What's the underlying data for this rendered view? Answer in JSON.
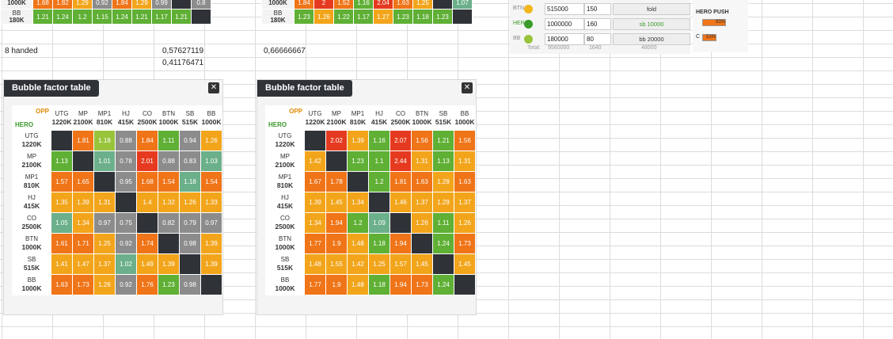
{
  "top_left_table": {
    "rows": [
      {
        "label": [
          "",
          "1000K"
        ],
        "values": [
          "1.68",
          "1.82",
          "1.29",
          "0.92",
          "1.84",
          "1.29",
          "0.99",
          "",
          "0.8"
        ],
        "colors": [
          "orange",
          "orange",
          "amber",
          "gray",
          "orange",
          "amber",
          "gray",
          "black",
          "gray"
        ]
      },
      {
        "label": [
          "BB",
          "180K"
        ],
        "values": [
          "1.21",
          "1.24",
          "1.2",
          "1.15",
          "1.24",
          "1.21",
          "1.17",
          "1.21",
          ""
        ],
        "colors": [
          "green",
          "green",
          "green",
          "green",
          "green",
          "green",
          "green",
          "green",
          "black"
        ]
      }
    ]
  },
  "top_mid_table": {
    "rows": [
      {
        "label": [
          "",
          "1000K"
        ],
        "values": [
          "1.84",
          "2",
          "1.52",
          "1.16",
          "2.04",
          "1.63",
          "1.25",
          "",
          "1.07"
        ],
        "colors": [
          "orange",
          "red",
          "orange",
          "green",
          "red",
          "orange",
          "amber",
          "black",
          "teal"
        ]
      },
      {
        "label": [
          "BB",
          "180K"
        ],
        "values": [
          "1.23",
          "1.26",
          "1.22",
          "1.17",
          "1.27",
          "1.23",
          "1.18",
          "1.23",
          ""
        ],
        "colors": [
          "green",
          "amber",
          "green",
          "green",
          "amber",
          "green",
          "green",
          "green",
          "black"
        ]
      }
    ]
  },
  "sheet_cells": {
    "label_8handed": "8 handed",
    "val_a1": "0,57627119",
    "val_a2": "0,41176471",
    "val_b1": "0,66666667"
  },
  "controls": {
    "rows": [
      {
        "pos": "BTN",
        "stack": "515000",
        "bet": "150",
        "action": "fold",
        "dot": "#f2b51b"
      },
      {
        "pos": "HERO",
        "stack": "1000000",
        "bet": "160",
        "action": "sb 10000",
        "dot": "#3a9a2a"
      },
      {
        "pos": "BB",
        "stack": "180000",
        "bet": "80",
        "action": "bb 20000",
        "dot": "#98c43c"
      }
    ],
    "totals_label": "Total:",
    "total_stack": "9560000",
    "total_bet": "1640",
    "total_pot": "48000"
  },
  "hero_push": {
    "title": "HERO PUSH",
    "bar1_label": "93%",
    "bar2_prefix": "C",
    "bar2_label": "53%",
    "bar1_fill": 0.93,
    "bar2_fill": 0.53
  },
  "tables": [
    {
      "title": "Bubble factor table",
      "opp_label": "OPP",
      "hero_label": "HERO",
      "players": [
        {
          "pos": "UTG",
          "stack": "1220K"
        },
        {
          "pos": "MP",
          "stack": "2100K"
        },
        {
          "pos": "MP1",
          "stack": "810K"
        },
        {
          "pos": "HJ",
          "stack": "415K"
        },
        {
          "pos": "CO",
          "stack": "2500K"
        },
        {
          "pos": "BTN",
          "stack": "1000K"
        },
        {
          "pos": "SB",
          "stack": "515K"
        },
        {
          "pos": "BB",
          "stack": "1000K"
        }
      ],
      "cells": [
        [
          [
            "",
            "black"
          ],
          [
            "1.81",
            "orange"
          ],
          [
            "1.18",
            "lime"
          ],
          [
            "0.88",
            "gray"
          ],
          [
            "1.84",
            "orange"
          ],
          [
            "1.11",
            "green"
          ],
          [
            "0.94",
            "gray"
          ],
          [
            "1.26",
            "amber"
          ]
        ],
        [
          [
            "1.13",
            "green"
          ],
          [
            "",
            "black"
          ],
          [
            "1.01",
            "teal"
          ],
          [
            "0.78",
            "gray"
          ],
          [
            "2.01",
            "red"
          ],
          [
            "0.88",
            "gray"
          ],
          [
            "0.83",
            "gray"
          ],
          [
            "1.03",
            "teal"
          ]
        ],
        [
          [
            "1.57",
            "orange"
          ],
          [
            "1.65",
            "orange"
          ],
          [
            "",
            "black"
          ],
          [
            "0.95",
            "gray"
          ],
          [
            "1.68",
            "orange"
          ],
          [
            "1.54",
            "orange"
          ],
          [
            "1.18",
            "teal"
          ],
          [
            "1.54",
            "orange"
          ]
        ],
        [
          [
            "1.35",
            "amber"
          ],
          [
            "1.39",
            "amber"
          ],
          [
            "1.31",
            "amber"
          ],
          [
            "",
            "black"
          ],
          [
            "1.4",
            "amber"
          ],
          [
            "1.32",
            "amber"
          ],
          [
            "1.26",
            "amber"
          ],
          [
            "1.33",
            "amber"
          ]
        ],
        [
          [
            "1.05",
            "teal"
          ],
          [
            "1.34",
            "amber"
          ],
          [
            "0.97",
            "gray"
          ],
          [
            "0.75",
            "gray"
          ],
          [
            "",
            "black"
          ],
          [
            "0.82",
            "gray"
          ],
          [
            "0.79",
            "gray"
          ],
          [
            "0.97",
            "gray"
          ]
        ],
        [
          [
            "1.61",
            "orange"
          ],
          [
            "1.71",
            "orange"
          ],
          [
            "1.25",
            "amber"
          ],
          [
            "0.92",
            "gray"
          ],
          [
            "1.74",
            "orange"
          ],
          [
            "",
            "black"
          ],
          [
            "0.98",
            "gray"
          ],
          [
            "1.39",
            "amber"
          ]
        ],
        [
          [
            "1.41",
            "amber"
          ],
          [
            "1.47",
            "amber"
          ],
          [
            "1.37",
            "amber"
          ],
          [
            "1.02",
            "teal"
          ],
          [
            "1.49",
            "amber"
          ],
          [
            "1.39",
            "amber"
          ],
          [
            "",
            "black"
          ],
          [
            "1.39",
            "amber"
          ]
        ],
        [
          [
            "1.63",
            "orange"
          ],
          [
            "1.73",
            "orange"
          ],
          [
            "1.26",
            "amber"
          ],
          [
            "0.92",
            "gray"
          ],
          [
            "1.76",
            "orange"
          ],
          [
            "1.23",
            "green"
          ],
          [
            "0.98",
            "gray"
          ],
          [
            "",
            "black"
          ]
        ]
      ]
    },
    {
      "title": "Bubble factor table",
      "opp_label": "OPP",
      "hero_label": "HERO",
      "players": [
        {
          "pos": "UTG",
          "stack": "1220K"
        },
        {
          "pos": "MP",
          "stack": "2100K"
        },
        {
          "pos": "MP1",
          "stack": "810K"
        },
        {
          "pos": "HJ",
          "stack": "415K"
        },
        {
          "pos": "CO",
          "stack": "2500K"
        },
        {
          "pos": "BTN",
          "stack": "1000K"
        },
        {
          "pos": "SB",
          "stack": "515K"
        },
        {
          "pos": "BB",
          "stack": "1000K"
        }
      ],
      "cells": [
        [
          [
            "",
            "black"
          ],
          [
            "2.02",
            "red"
          ],
          [
            "1.39",
            "amber"
          ],
          [
            "1.16",
            "green"
          ],
          [
            "2.07",
            "red"
          ],
          [
            "1.56",
            "orange"
          ],
          [
            "1.21",
            "green"
          ],
          [
            "1.56",
            "orange"
          ]
        ],
        [
          [
            "1.42",
            "amber"
          ],
          [
            "",
            "black"
          ],
          [
            "1.23",
            "green"
          ],
          [
            "1.1",
            "green"
          ],
          [
            "2.44",
            "red"
          ],
          [
            "1.31",
            "amber"
          ],
          [
            "1.13",
            "green"
          ],
          [
            "1.31",
            "amber"
          ]
        ],
        [
          [
            "1.67",
            "orange"
          ],
          [
            "1.78",
            "orange"
          ],
          [
            "",
            "black"
          ],
          [
            "1.2",
            "green"
          ],
          [
            "1.81",
            "orange"
          ],
          [
            "1.63",
            "orange"
          ],
          [
            "1.28",
            "amber"
          ],
          [
            "1.63",
            "orange"
          ]
        ],
        [
          [
            "1.39",
            "amber"
          ],
          [
            "1.45",
            "amber"
          ],
          [
            "1.34",
            "amber"
          ],
          [
            "",
            "black"
          ],
          [
            "1.46",
            "amber"
          ],
          [
            "1.37",
            "amber"
          ],
          [
            "1.29",
            "amber"
          ],
          [
            "1.37",
            "amber"
          ]
        ],
        [
          [
            "1.34",
            "amber"
          ],
          [
            "1.94",
            "orange"
          ],
          [
            "1.2",
            "green"
          ],
          [
            "1.09",
            "teal"
          ],
          [
            "",
            "black"
          ],
          [
            "1.26",
            "amber"
          ],
          [
            "1.11",
            "green"
          ],
          [
            "1.26",
            "amber"
          ]
        ],
        [
          [
            "1.77",
            "orange"
          ],
          [
            "1.9",
            "orange"
          ],
          [
            "1.48",
            "amber"
          ],
          [
            "1.18",
            "green"
          ],
          [
            "1.94",
            "orange"
          ],
          [
            "",
            "black"
          ],
          [
            "1.24",
            "green"
          ],
          [
            "1.73",
            "orange"
          ]
        ],
        [
          [
            "1.48",
            "amber"
          ],
          [
            "1.55",
            "amber"
          ],
          [
            "1.42",
            "amber"
          ],
          [
            "1.25",
            "amber"
          ],
          [
            "1.57",
            "amber"
          ],
          [
            "1.45",
            "amber"
          ],
          [
            "",
            "black"
          ],
          [
            "1.45",
            "amber"
          ]
        ],
        [
          [
            "1.77",
            "orange"
          ],
          [
            "1.9",
            "orange"
          ],
          [
            "1.48",
            "amber"
          ],
          [
            "1.18",
            "green"
          ],
          [
            "1.94",
            "orange"
          ],
          [
            "1.73",
            "orange"
          ],
          [
            "1.24",
            "green"
          ],
          [
            "",
            "black"
          ]
        ]
      ]
    }
  ]
}
